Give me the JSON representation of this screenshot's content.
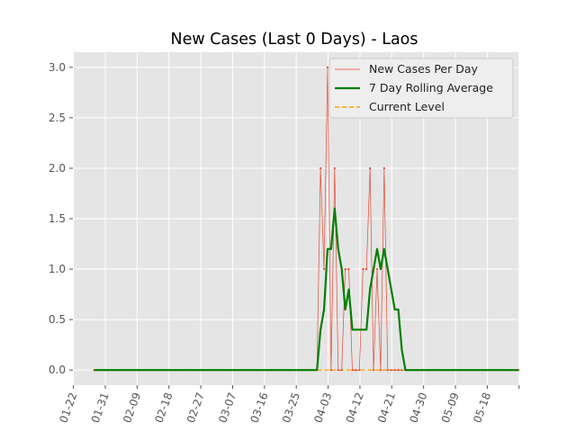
{
  "chart_data": {
    "type": "line",
    "title": "New Cases (Last 0 Days) - Laos",
    "xlabel": "",
    "ylabel": "",
    "x": [
      "01-22",
      "01-23",
      "01-24",
      "01-25",
      "01-26",
      "01-27",
      "01-28",
      "01-29",
      "01-30",
      "01-31",
      "02-01",
      "02-02",
      "02-03",
      "02-04",
      "02-05",
      "02-06",
      "02-07",
      "02-08",
      "02-09",
      "02-10",
      "02-11",
      "02-12",
      "02-13",
      "02-14",
      "02-15",
      "02-16",
      "02-17",
      "02-18",
      "02-19",
      "02-20",
      "02-21",
      "02-22",
      "02-23",
      "02-24",
      "02-25",
      "02-26",
      "02-27",
      "02-28",
      "02-29",
      "03-01",
      "03-02",
      "03-03",
      "03-04",
      "03-05",
      "03-06",
      "03-07",
      "03-08",
      "03-09",
      "03-10",
      "03-11",
      "03-12",
      "03-13",
      "03-14",
      "03-15",
      "03-16",
      "03-17",
      "03-18",
      "03-19",
      "03-20",
      "03-21",
      "03-22",
      "03-23",
      "03-24",
      "03-25",
      "03-26",
      "03-27",
      "03-28",
      "03-29",
      "03-30",
      "03-31",
      "04-01",
      "04-02",
      "04-03",
      "04-04",
      "04-05",
      "04-06",
      "04-07",
      "04-08",
      "04-09",
      "04-10",
      "04-11",
      "04-12",
      "04-13",
      "04-14",
      "04-15",
      "04-16",
      "04-17",
      "04-18",
      "04-19",
      "04-20",
      "04-21",
      "04-22",
      "04-23",
      "04-24",
      "04-25",
      "04-26",
      "04-27",
      "04-28",
      "04-29",
      "04-30",
      "05-01",
      "05-02",
      "05-03",
      "05-04",
      "05-05",
      "05-06",
      "05-07",
      "05-08",
      "05-09",
      "05-10",
      "05-11",
      "05-12",
      "05-13",
      "05-14",
      "05-15",
      "05-16",
      "05-17",
      "05-18",
      "05-19",
      "05-20",
      "05-21"
    ],
    "series": [
      {
        "name": "New Cases Per Day",
        "color": "#e24a33",
        "style": "thin-line-with-dots",
        "values": [
          0,
          0,
          0,
          0,
          0,
          0,
          0,
          0,
          0,
          0,
          0,
          0,
          0,
          0,
          0,
          0,
          0,
          0,
          0,
          0,
          0,
          0,
          0,
          0,
          0,
          0,
          0,
          0,
          0,
          0,
          0,
          0,
          0,
          0,
          0,
          0,
          0,
          0,
          0,
          0,
          0,
          0,
          0,
          0,
          0,
          0,
          0,
          0,
          0,
          0,
          0,
          0,
          0,
          0,
          0,
          0,
          0,
          0,
          0,
          0,
          0,
          0,
          0,
          0,
          2,
          1,
          3,
          0,
          2,
          0,
          0,
          1,
          1,
          0,
          0,
          0,
          1,
          1,
          2,
          0,
          1,
          0,
          2,
          0,
          0,
          0,
          0,
          0,
          0,
          0,
          0,
          0,
          0,
          0,
          0,
          0,
          0,
          0,
          0,
          0,
          0,
          0,
          0,
          0,
          0,
          0,
          0,
          0,
          0,
          0,
          0,
          0,
          0,
          0,
          0,
          0,
          0,
          0,
          0,
          0,
          0
        ]
      },
      {
        "name": "7 Day Rolling Average",
        "color": "#008000",
        "style": "thick-line",
        "values": [
          0,
          0,
          0,
          0,
          0,
          0,
          0,
          0,
          0,
          0,
          0,
          0,
          0,
          0,
          0,
          0,
          0,
          0,
          0,
          0,
          0,
          0,
          0,
          0,
          0,
          0,
          0,
          0,
          0,
          0,
          0,
          0,
          0,
          0,
          0,
          0,
          0,
          0,
          0,
          0,
          0,
          0,
          0,
          0,
          0,
          0,
          0,
          0,
          0,
          0,
          0,
          0,
          0,
          0,
          0,
          0,
          0,
          0,
          0,
          0,
          0,
          0,
          0,
          0,
          0.4,
          0.6,
          1.2,
          1.2,
          1.6,
          1.2,
          1.0,
          0.6,
          0.8,
          0.4,
          0.4,
          0.4,
          0.4,
          0.4,
          0.8,
          1.0,
          1.2,
          1.0,
          1.2,
          1.0,
          0.8,
          0.6,
          0.6,
          0.2,
          0,
          0,
          0,
          0,
          0,
          0,
          0,
          0,
          0,
          0,
          0,
          0,
          0,
          0,
          0,
          0,
          0,
          0,
          0,
          0,
          0,
          0,
          0,
          0,
          0,
          0,
          0,
          0,
          0,
          0,
          0,
          0,
          0
        ]
      },
      {
        "name": "Current Level",
        "color": "#ffa500",
        "style": "dashed-line",
        "values": [
          0,
          0,
          0,
          0,
          0,
          0,
          0,
          0,
          0,
          0,
          0,
          0,
          0,
          0,
          0,
          0,
          0,
          0,
          0,
          0,
          0,
          0,
          0,
          0,
          0,
          0,
          0,
          0,
          0,
          0,
          0,
          0,
          0,
          0,
          0,
          0,
          0,
          0,
          0,
          0,
          0,
          0,
          0,
          0,
          0,
          0,
          0,
          0,
          0,
          0,
          0,
          0,
          0,
          0,
          0,
          0,
          0,
          0,
          0,
          0,
          0,
          0,
          0,
          0,
          0,
          0,
          0,
          0,
          0,
          0,
          0,
          0,
          0,
          0,
          0,
          0,
          0,
          0,
          0,
          0,
          0,
          0,
          0,
          0,
          0,
          0,
          0,
          0,
          0,
          0,
          0,
          0,
          0,
          0,
          0,
          0,
          0,
          0,
          0,
          0,
          0,
          0,
          0,
          0,
          0,
          0,
          0,
          0,
          0,
          0,
          0,
          0,
          0,
          0,
          0,
          0,
          0,
          0,
          0,
          0,
          0
        ]
      }
    ],
    "xticks": [
      "01-22",
      "01-31",
      "02-09",
      "02-18",
      "02-27",
      "03-07",
      "03-16",
      "03-25",
      "04-03",
      "04-12",
      "04-21",
      "04-30",
      "05-09",
      "05-18",
      ""
    ],
    "yticks": [
      "0.0",
      "0.5",
      "1.0",
      "1.5",
      "2.0",
      "2.5",
      "3.0"
    ],
    "ylim": [
      -0.15,
      3.15
    ],
    "grid": true,
    "legend": "top-right",
    "background": "#e5e5e5"
  }
}
